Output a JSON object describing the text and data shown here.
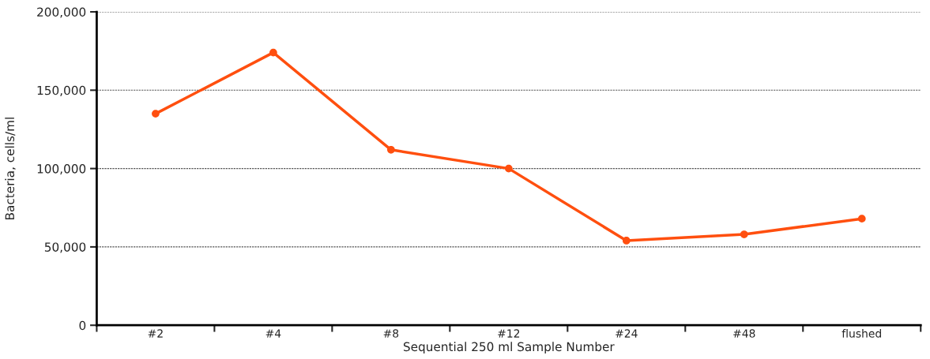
{
  "chart_data": {
    "type": "line",
    "xlabel": "Sequential 250 ml Sample Number",
    "ylabel": "Bacteria, cells/ml",
    "categories": [
      "#2",
      "#4",
      "#8",
      "#12",
      "#24",
      "#48",
      "flushed"
    ],
    "series": [
      {
        "color": "#ff4f0f",
        "values": [
          135000,
          174000,
          112000,
          100000,
          54000,
          58000,
          68000
        ]
      }
    ],
    "ylim": [
      0,
      200000
    ],
    "yticks": [
      {
        "value": 0,
        "label": "0"
      },
      {
        "value": 50000,
        "label": "50,000"
      },
      {
        "value": 100000,
        "label": "100,000"
      },
      {
        "value": 150000,
        "label": "150,000"
      },
      {
        "value": 200000,
        "label": "200,000"
      }
    ],
    "grid": "y",
    "marker": "circle",
    "line_style": "solid",
    "legend": false
  }
}
